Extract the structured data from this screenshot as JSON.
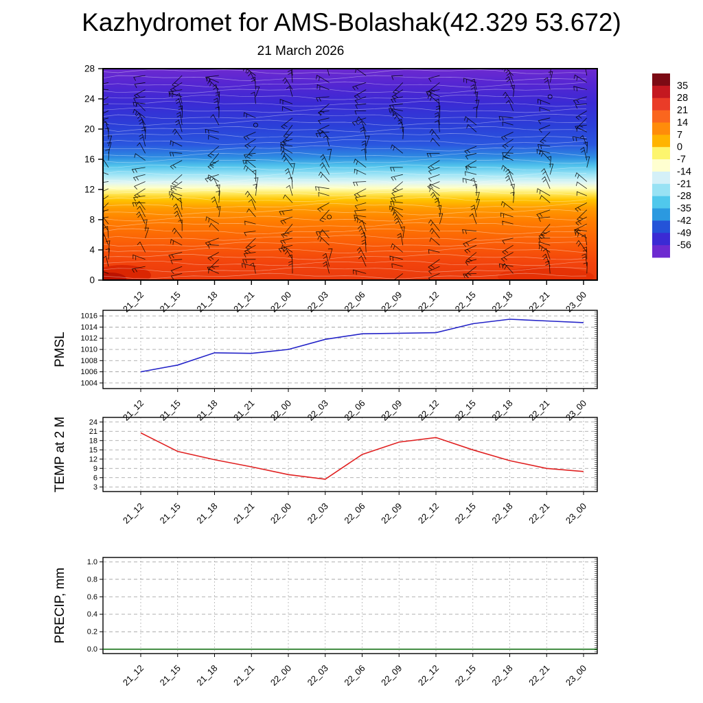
{
  "title": "Kazhydromet for AMS-Bolashak(42.329 53.672)",
  "subtitle": "21 March 2026",
  "time_labels": [
    "21_12",
    "21_15",
    "21_18",
    "21_21",
    "22_00",
    "22_03",
    "22_06",
    "22_09",
    "22_12",
    "22_15",
    "22_18",
    "22_21",
    "23_00"
  ],
  "colorbar": {
    "tick_labels": [
      35,
      28,
      21,
      14,
      7,
      0,
      -7,
      -14,
      -21,
      -28,
      -35,
      -42,
      -49,
      -56
    ],
    "colors_top_to_bottom": [
      "#7c0a14",
      "#c41820",
      "#ea3c28",
      "#fa661e",
      "#ff8c0a",
      "#ffb400",
      "#fdf56e",
      "#ffffd0",
      "#d4f0f8",
      "#98e2f4",
      "#50c8ec",
      "#2b99e0",
      "#2453d8",
      "#3b2ad4",
      "#6d2ad0"
    ]
  },
  "chart_data": [
    {
      "type": "heatmap",
      "name": "temperature-height-cross-section",
      "title": "21 March 2026",
      "description": "Time-height temperature cross-section with wind barbs; warm orange/red near surface grading through yellow near level 12 to cyan, blue and violet aloft",
      "y_ticks": [
        0,
        4,
        8,
        12,
        16,
        20,
        24,
        28
      ],
      "y_range": [
        0,
        28
      ],
      "x_tick_labels": [
        "21_12",
        "21_15",
        "21_18",
        "21_21",
        "22_00",
        "22_03",
        "22_06",
        "22_09",
        "22_12",
        "22_15",
        "22_18",
        "22_21",
        "23_00"
      ],
      "gradient_top_to_bottom": [
        {
          "offset": 0,
          "color": "#6d2ad0"
        },
        {
          "offset": 0.07,
          "color": "#5626d2"
        },
        {
          "offset": 0.16,
          "color": "#3b2ad4"
        },
        {
          "offset": 0.27,
          "color": "#2b3fd8"
        },
        {
          "offset": 0.36,
          "color": "#2a57df"
        },
        {
          "offset": 0.42,
          "color": "#2e8ee2"
        },
        {
          "offset": 0.46,
          "color": "#52c4ec"
        },
        {
          "offset": 0.5,
          "color": "#9ce4f6"
        },
        {
          "offset": 0.54,
          "color": "#e2f7f3"
        },
        {
          "offset": 0.565,
          "color": "#ffffc0"
        },
        {
          "offset": 0.59,
          "color": "#ffe95e"
        },
        {
          "offset": 0.62,
          "color": "#ffc400"
        },
        {
          "offset": 0.66,
          "color": "#ff9b00"
        },
        {
          "offset": 0.72,
          "color": "#ff7e00"
        },
        {
          "offset": 0.82,
          "color": "#fb5f07"
        },
        {
          "offset": 0.92,
          "color": "#f2430c"
        },
        {
          "offset": 1,
          "color": "#e93a0d"
        }
      ]
    },
    {
      "type": "line",
      "name": "pmsl",
      "ylabel": "PMSL",
      "y_ticks": [
        1004,
        1006,
        1008,
        1010,
        1012,
        1014,
        1016
      ],
      "y_range": [
        1003,
        1017
      ],
      "x": [
        "21_12",
        "21_15",
        "21_18",
        "21_21",
        "22_00",
        "22_03",
        "22_06",
        "22_09",
        "22_12",
        "22_15",
        "22_18",
        "22_21",
        "23_00"
      ],
      "values": [
        1006,
        1007.2,
        1009.4,
        1009.3,
        1010,
        1011.8,
        1012.8,
        1012.9,
        1013,
        1014.6,
        1015.4,
        1015.1,
        1014.8
      ],
      "line_color": "#2323c8"
    },
    {
      "type": "line",
      "name": "temp-2m",
      "ylabel": "TEMP at 2 M",
      "y_ticks": [
        3,
        6,
        9,
        12,
        15,
        18,
        21,
        24
      ],
      "y_range": [
        1.5,
        25.5
      ],
      "x": [
        "21_12",
        "21_15",
        "21_18",
        "21_21",
        "22_00",
        "22_03",
        "22_06",
        "22_09",
        "22_12",
        "22_15",
        "22_18",
        "22_21",
        "23_00"
      ],
      "values": [
        20.5,
        14.5,
        11.8,
        9.5,
        7,
        5.5,
        13.5,
        17.5,
        19,
        15,
        11.5,
        9,
        8
      ],
      "line_color": "#e02020"
    },
    {
      "type": "line",
      "name": "precip",
      "ylabel": "PRECIP, mm",
      "y_ticks": [
        0,
        0.2,
        0.4,
        0.6,
        0.8,
        1
      ],
      "y_tick_labels": [
        "0.0",
        "0.2",
        "0.4",
        "0.6",
        "0.8",
        "1.0"
      ],
      "y_range": [
        -0.05,
        1.05
      ],
      "x": [
        "21_12",
        "21_15",
        "21_18",
        "21_21",
        "22_00",
        "22_03",
        "22_06",
        "22_09",
        "22_12",
        "22_15",
        "22_18",
        "22_21",
        "23_00"
      ],
      "values": [
        0,
        0,
        0,
        0,
        0,
        0,
        0,
        0,
        0,
        0,
        0,
        0,
        0
      ],
      "line_color": "#006400"
    }
  ]
}
